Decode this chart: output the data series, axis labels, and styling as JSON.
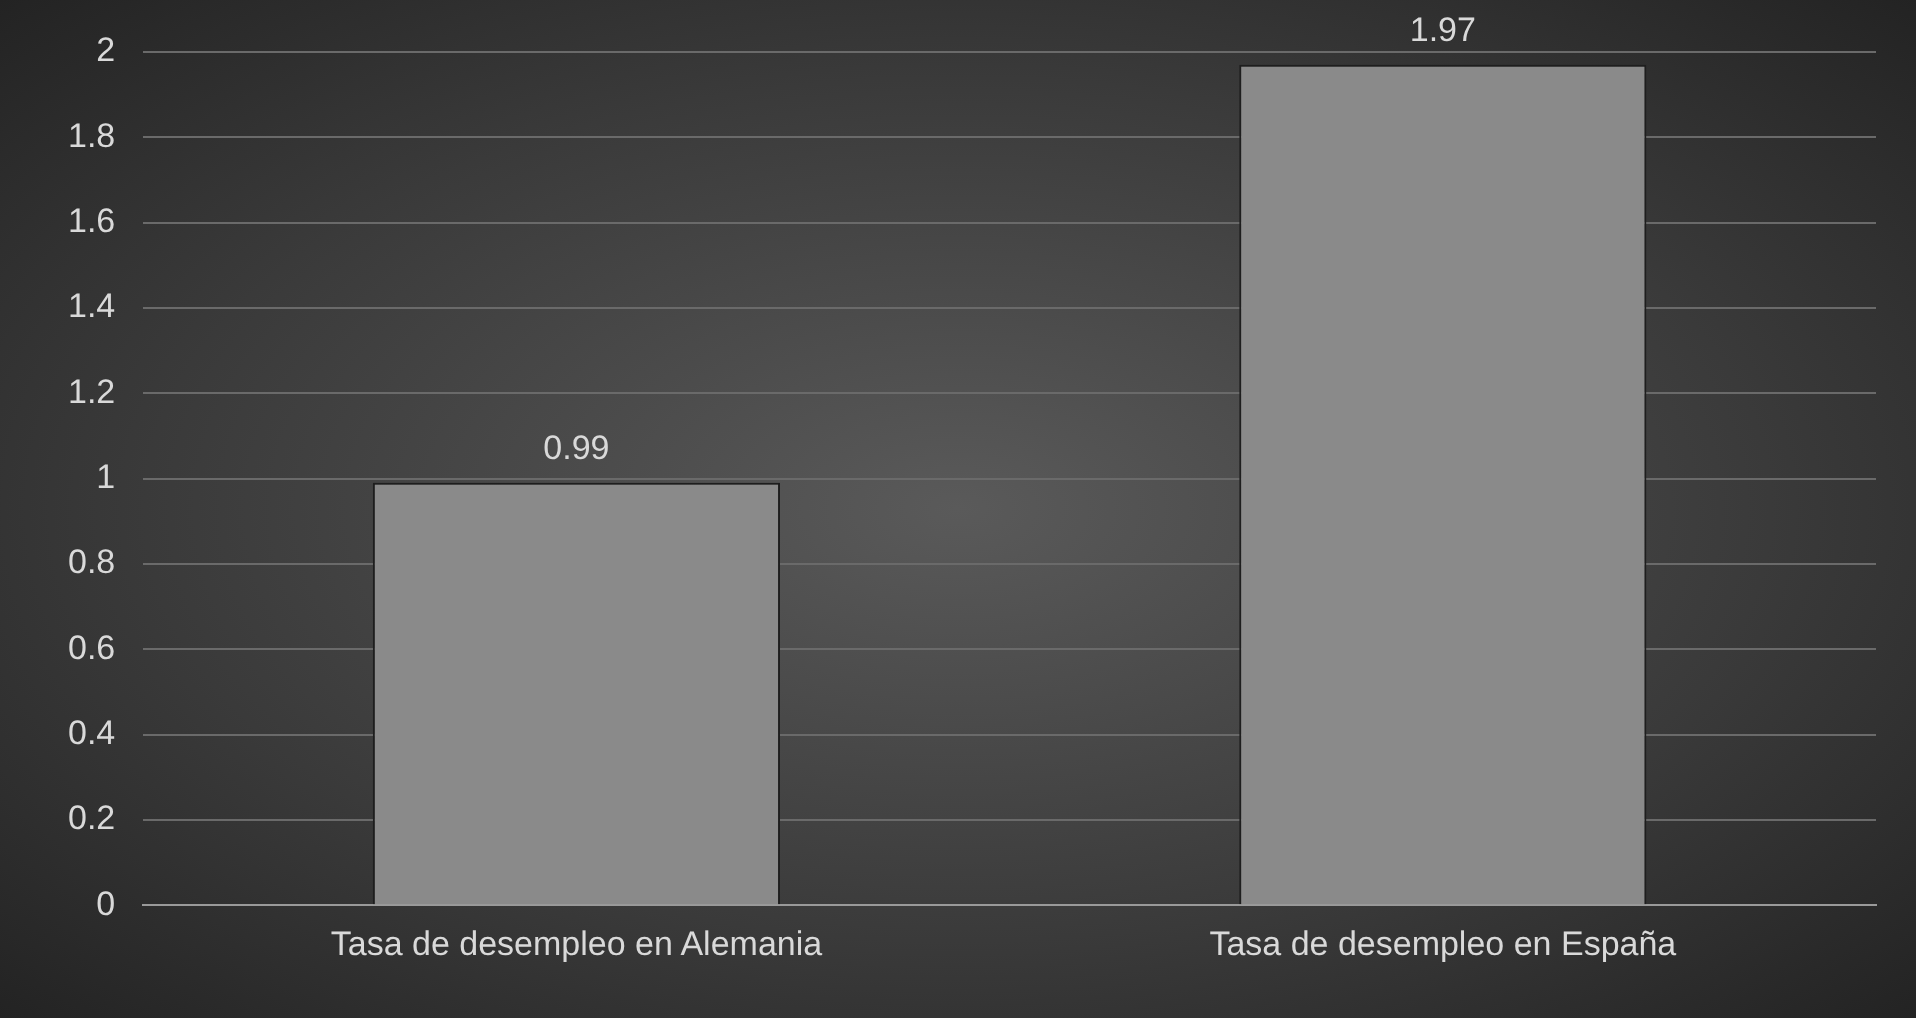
{
  "chart_data": {
    "type": "bar",
    "categories": [
      "Tasa de desempleo en Alemania",
      "Tasa de desempleo en España"
    ],
    "values": [
      0.99,
      1.97
    ],
    "color": "#8a8a8a",
    "ylim": [
      0,
      2
    ],
    "yticks": [
      0,
      0.2,
      0.4,
      0.6,
      0.8,
      1,
      1.2,
      1.4,
      1.6,
      1.8,
      2
    ],
    "grid": "y",
    "data_labels": true
  }
}
